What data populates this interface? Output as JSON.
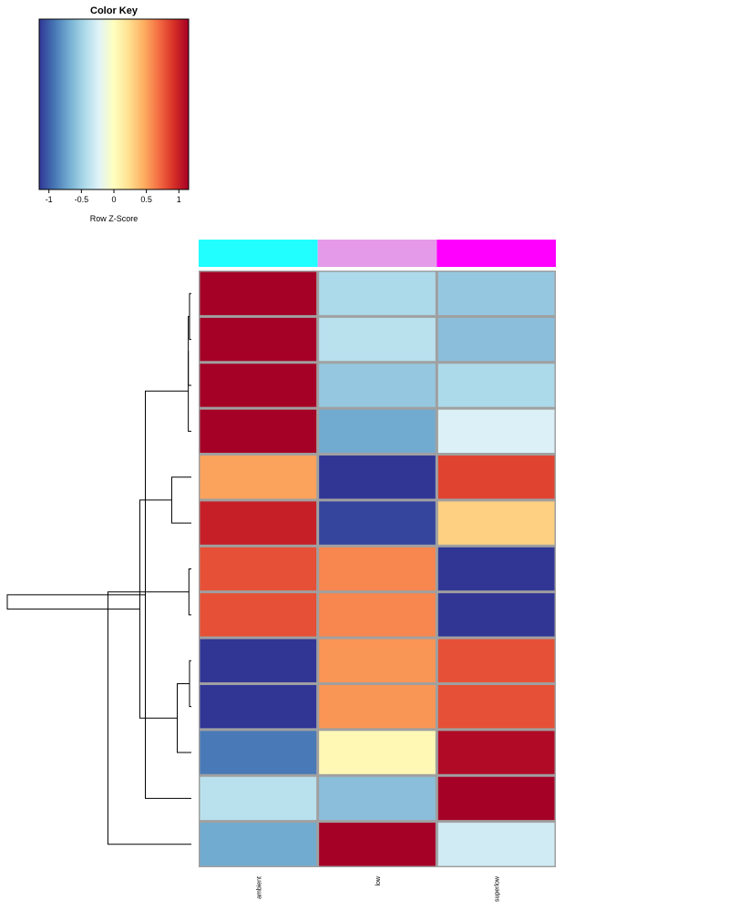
{
  "chart_data": {
    "type": "heatmap",
    "color_key": {
      "title": "Color Key",
      "xlabel": "Row Z-Score",
      "ticks": [
        "-1",
        "-0.5",
        "0",
        "0.5",
        "1"
      ],
      "range": [
        -1.15,
        1.15
      ],
      "colors": [
        "#313695",
        "#4575b4",
        "#74add1",
        "#abd9e9",
        "#e0f3f8",
        "#ffffbf",
        "#fee090",
        "#fdae61",
        "#f46d43",
        "#d73027",
        "#a50026"
      ]
    },
    "columns": [
      "ambient",
      "low",
      "superlow"
    ],
    "column_side_colors": [
      "#22ffff",
      "#e59ae9",
      "#ff00ff"
    ],
    "values": [
      [
        1.15,
        -0.45,
        -0.55
      ],
      [
        1.15,
        -0.4,
        -0.6
      ],
      [
        1.15,
        -0.55,
        -0.45
      ],
      [
        1.15,
        -0.7,
        -0.25
      ],
      [
        0.5,
        -1.15,
        0.85
      ],
      [
        1.0,
        -1.1,
        0.3
      ],
      [
        0.8,
        0.6,
        -1.15
      ],
      [
        0.8,
        0.6,
        -1.15
      ],
      [
        -1.15,
        0.55,
        0.8
      ],
      [
        -1.15,
        0.55,
        0.8
      ],
      [
        -0.9,
        0.05,
        1.1
      ],
      [
        -0.4,
        -0.6,
        1.15
      ],
      [
        -0.7,
        1.15,
        -0.3
      ]
    ],
    "row_dendrogram": {
      "leaf_order": [
        0,
        1,
        2,
        3,
        4,
        5,
        6,
        7,
        8,
        9,
        10,
        11,
        12
      ],
      "merges": [
        [
          -1,
          -2,
          0.03
        ],
        [
          -9,
          -10,
          0.03
        ],
        [
          -7,
          -8,
          0.04
        ],
        [
          -3,
          1,
          0.05
        ],
        [
          2,
          -11,
          0.23
        ],
        [
          -4,
          4,
          0.05
        ],
        [
          -5,
          -6,
          0.32
        ],
        [
          5,
          7,
          0.84
        ],
        [
          3,
          3,
          0.74
        ],
        [
          6,
          -12,
          0.75
        ],
        [
          9,
          -13,
          1.36
        ],
        [
          8,
          10,
          3.0
        ]
      ]
    }
  }
}
